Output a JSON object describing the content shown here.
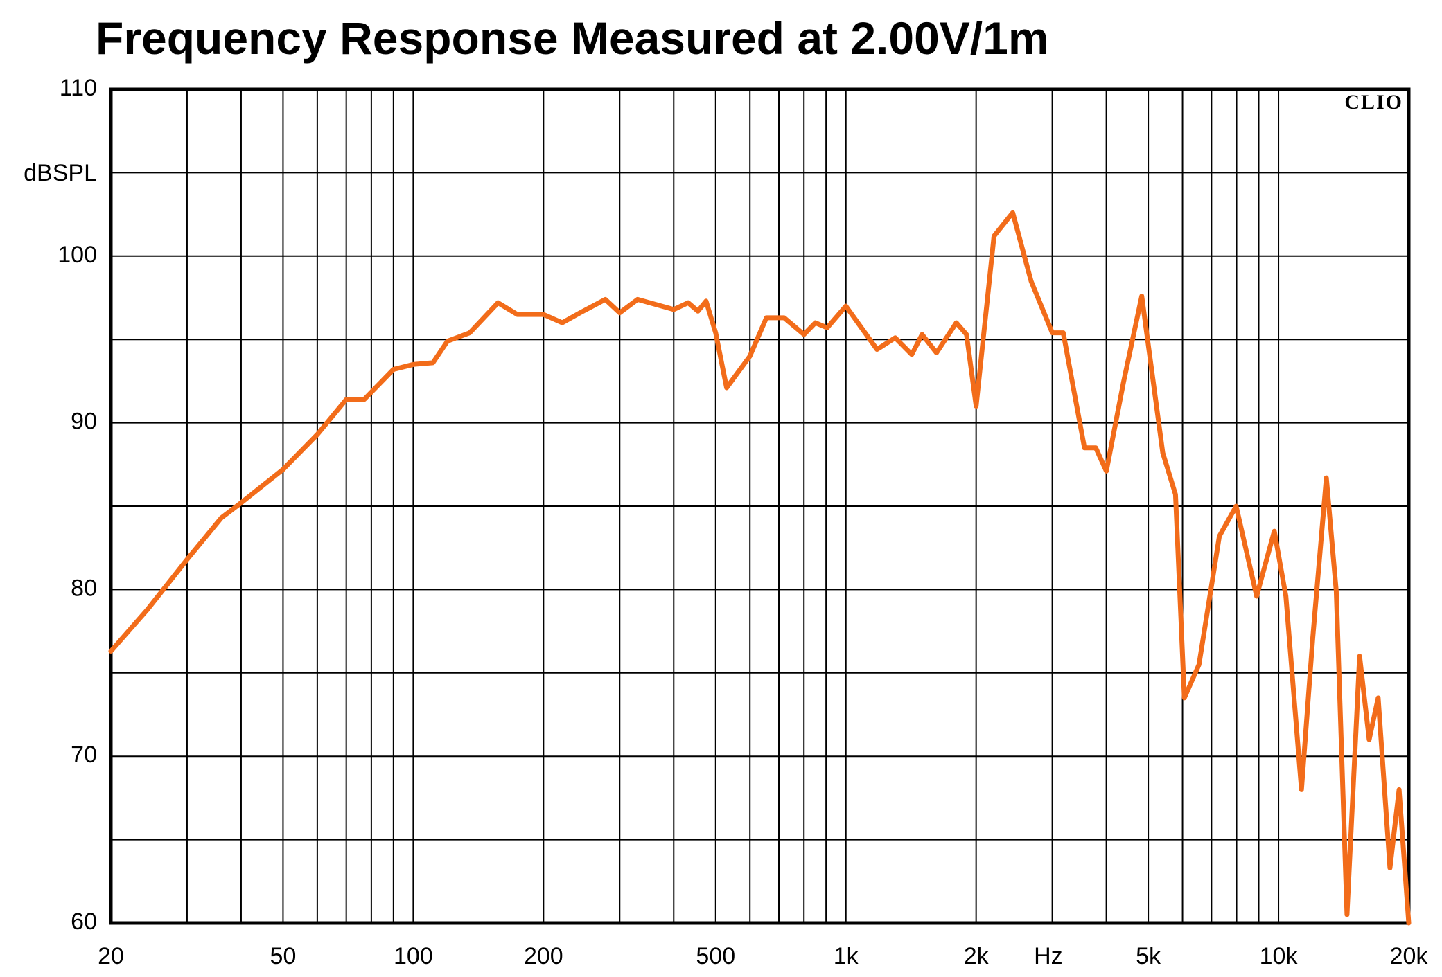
{
  "chart_data": {
    "type": "line",
    "title": "Frequency Response Measured at 2.00V/1m",
    "y_label": "dBSPL",
    "x_label": "Hz",
    "watermark": "CLIO",
    "x_scale": "log",
    "grid": true,
    "xlim": [
      20,
      20000
    ],
    "ylim": [
      60,
      110
    ],
    "xticks": [
      20,
      50,
      100,
      200,
      500,
      {
        "value": 1000,
        "label": "1k"
      },
      {
        "value": 2000,
        "label": "2k"
      },
      {
        "value": 5000,
        "label": "5k"
      },
      {
        "value": 10000,
        "label": "10k"
      },
      {
        "value": 20000,
        "label": "20k"
      }
    ],
    "xgrid": [
      30,
      40,
      60,
      70,
      80,
      90,
      300,
      400,
      600,
      700,
      800,
      900,
      3000,
      4000,
      6000,
      7000,
      8000,
      9000
    ],
    "yticks": [
      60,
      70,
      80,
      90,
      100,
      110
    ],
    "ygrid": [
      65,
      75,
      85,
      95,
      105
    ],
    "series": [
      {
        "color": "#f26c1a",
        "x": [
          20,
          24.3,
          30,
          36,
          40,
          50,
          60,
          70,
          77,
          90,
          100,
          111,
          120,
          135,
          157,
          174,
          200,
          221,
          243,
          278,
          300,
          330,
          400,
          432,
          455,
          475,
          500,
          530,
          600,
          655,
          720,
          800,
          850,
          905,
          1000,
          1180,
          1300,
          1420,
          1500,
          1620,
          1800,
          1900,
          2000,
          2200,
          2430,
          2680,
          3000,
          3180,
          3560,
          3780,
          4000,
          4380,
          4830,
          5400,
          5780,
          6060,
          6550,
          7300,
          7980,
          8900,
          9780,
          10400,
          11300,
          12000,
          12900,
          13600,
          14400,
          15400,
          16200,
          17000,
          18100,
          19000,
          20000
        ],
        "values": [
          76.3,
          78.8,
          81.8,
          84.3,
          85.2,
          87.2,
          89.3,
          91.4,
          91.4,
          93.2,
          93.5,
          93.6,
          94.9,
          95.4,
          97.2,
          96.5,
          96.5,
          96.0,
          96.6,
          97.4,
          96.6,
          97.4,
          96.8,
          97.2,
          96.7,
          97.3,
          95.4,
          92.1,
          94.0,
          96.3,
          96.3,
          95.3,
          96.0,
          95.7,
          97.0,
          94.4,
          95.1,
          94.1,
          95.3,
          94.2,
          96.0,
          95.3,
          91.0,
          101.2,
          102.6,
          98.5,
          95.4,
          95.4,
          88.5,
          88.5,
          87.1,
          92.4,
          97.6,
          88.2,
          85.7,
          73.5,
          75.5,
          83.2,
          85.0,
          79.6,
          83.5,
          79.6,
          68.0,
          77.1,
          86.7,
          79.9,
          60.5,
          76.0,
          71.0,
          73.5,
          63.3,
          68.0,
          60.0
        ]
      }
    ]
  }
}
